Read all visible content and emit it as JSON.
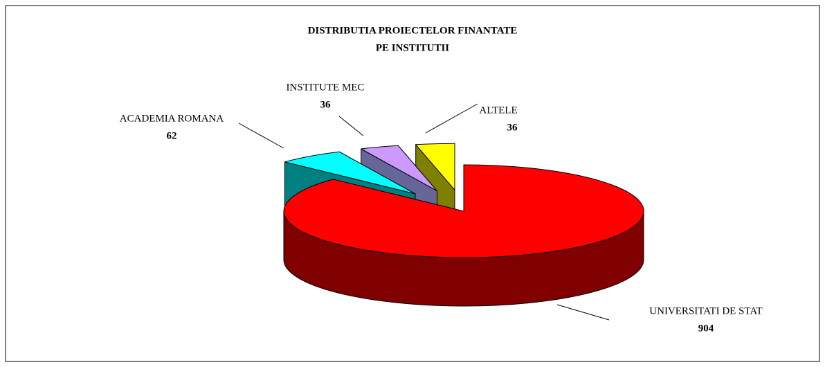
{
  "chart_data": {
    "type": "pie3d",
    "title": [
      "DISTRIBUTIA PROIECTELOR FINANTATE",
      "PE INSTITUTII"
    ],
    "categories": [
      "ALTELE",
      "INSTITUTE MEC",
      "ACADEMIA ROMANA",
      "UNIVERSITATI DE STAT"
    ],
    "values": [
      36,
      36,
      62,
      904
    ],
    "colors": [
      "#ffff00",
      "#cc99ff",
      "#00ffff",
      "#ff0000"
    ],
    "side_colors": [
      "#808000",
      "#666699",
      "#008080",
      "#800000"
    ],
    "exploded": [
      true,
      true,
      true,
      false
    ]
  }
}
